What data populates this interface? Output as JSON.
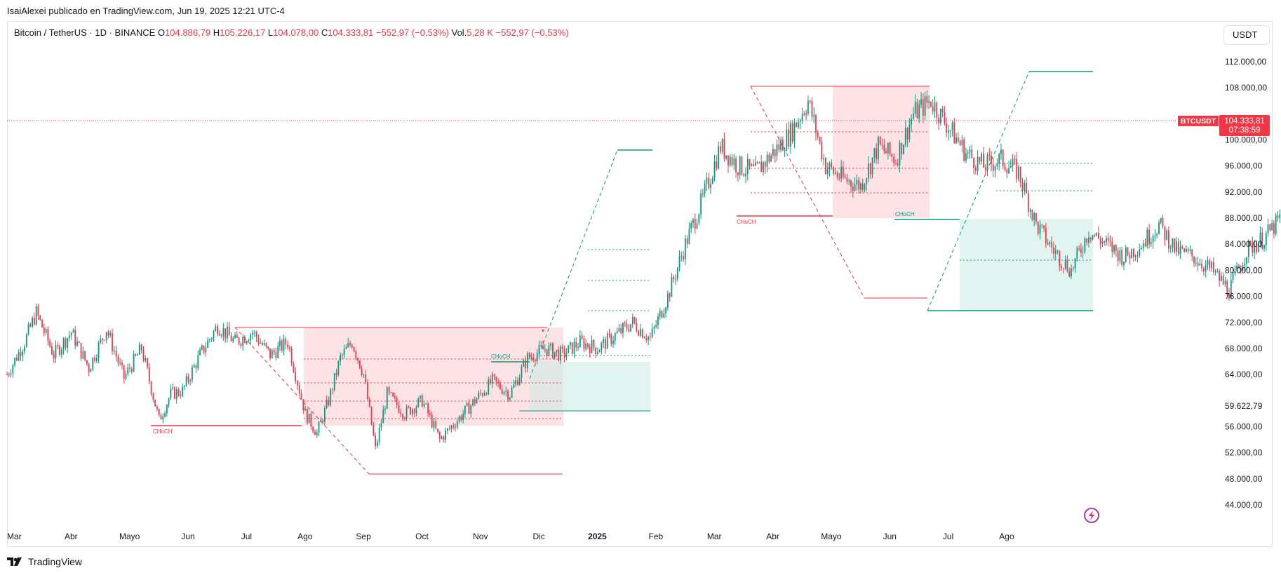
{
  "header": {
    "text": "IsaiAlexei publicado en TradingView.com, Jun 19, 2025 12:21 UTC-4"
  },
  "legend": {
    "symbol": "Bitcoin / TetherUS · 1D · BINANCE",
    "o_label": "O",
    "o_value": "104.886,79",
    "h_label": "H",
    "h_value": "105.226,17",
    "l_label": "L",
    "l_value": "104.078,00",
    "c_label": "C",
    "c_value": "104.333,81",
    "change": "−552,97 (−0,53%)",
    "vol_label": "Vol.",
    "vol_value": "5,28 K",
    "vol_change": "−552,97 (−0,53%)"
  },
  "currency_button": "USDT",
  "price_badge": {
    "symbol": "BTCUSDT",
    "price": "104.333,81",
    "countdown": "07:38:59"
  },
  "extra_price_label": "59.622,79",
  "footer": {
    "brand": "TradingView"
  },
  "colors": {
    "up": "#089981",
    "down": "#f23645",
    "grid_red_zone": "#fde3e5",
    "grid_green_zone": "#e1f4ef",
    "grey_zone": "#e6e6e6"
  },
  "icons": {
    "brand_logo": "tradingview-logo-icon",
    "flash": "lightning-icon"
  },
  "chart_data": {
    "type": "candlestick",
    "x_tick_labels": [
      "Mar",
      "Abr",
      "Mayo",
      "Jun",
      "Jul",
      "Ago",
      "Sep",
      "Oct",
      "Nov",
      "Dic",
      "2025",
      "Feb",
      "Mar",
      "Abr",
      "Mayo",
      "Jun",
      "Jul",
      "Ago"
    ],
    "y_tick_labels": [
      "112.000,00",
      "108.000,00",
      "100.000,00",
      "96.000,00",
      "92.000,00",
      "88.000,00",
      "84.000,00",
      "80.000,00",
      "76.000,00",
      "72.000,00",
      "68.000,00",
      "64.000,00",
      "56.000,00",
      "52.000,00",
      "48.000,00",
      "44.000,00"
    ],
    "y_tick_values": [
      112000,
      108000,
      100000,
      96000,
      92000,
      88000,
      84000,
      80000,
      76000,
      72000,
      68000,
      64000,
      56000,
      52000,
      48000,
      44000
    ],
    "ylim": [
      41000,
      117000
    ],
    "choch_labels": [
      "CHoCH",
      "CHoCH",
      "CHoCH",
      "CHoCH"
    ],
    "current_price": 104333.81,
    "price_path": [
      [
        2.0,
        64000
      ],
      [
        2.3,
        69000
      ],
      [
        2.5,
        73500
      ],
      [
        2.8,
        67000
      ],
      [
        3.1,
        70500
      ],
      [
        3.4,
        65000
      ],
      [
        3.7,
        71000
      ],
      [
        4.0,
        63500
      ],
      [
        4.3,
        68000
      ],
      [
        4.6,
        57000
      ],
      [
        4.8,
        61000
      ],
      [
        5.0,
        61500
      ],
      [
        5.3,
        67000
      ],
      [
        5.6,
        71500
      ],
      [
        5.9,
        69000
      ],
      [
        6.2,
        70500
      ],
      [
        6.5,
        67000
      ],
      [
        6.8,
        69000
      ],
      [
        7.1,
        58000
      ],
      [
        7.3,
        55000
      ],
      [
        7.5,
        60000
      ],
      [
        7.7,
        66500
      ],
      [
        7.9,
        69000
      ],
      [
        8.1,
        64000
      ],
      [
        8.3,
        52500
      ],
      [
        8.5,
        61000
      ],
      [
        8.8,
        58000
      ],
      [
        9.1,
        60000
      ],
      [
        9.4,
        54000
      ],
      [
        9.7,
        57000
      ],
      [
        10.0,
        60000
      ],
      [
        10.3,
        63000
      ],
      [
        10.6,
        61000
      ],
      [
        10.9,
        66500
      ],
      [
        11.2,
        68000
      ],
      [
        11.5,
        67000
      ],
      [
        11.8,
        69000
      ],
      [
        12.1,
        68000
      ],
      [
        12.4,
        70000
      ],
      [
        12.7,
        72000
      ],
      [
        13.0,
        69500
      ],
      [
        13.3,
        76000
      ],
      [
        13.6,
        84000
      ],
      [
        13.9,
        91000
      ],
      [
        14.2,
        99000
      ],
      [
        14.5,
        96000
      ],
      [
        14.8,
        95000
      ],
      [
        15.1,
        98000
      ],
      [
        15.4,
        101000
      ],
      [
        15.7,
        106000
      ],
      [
        16.0,
        96000
      ],
      [
        16.3,
        94000
      ],
      [
        16.6,
        93000
      ],
      [
        16.9,
        99000
      ],
      [
        17.2,
        97000
      ],
      [
        17.5,
        104000
      ],
      [
        17.8,
        106000
      ],
      [
        18.1,
        102000
      ],
      [
        18.4,
        98000
      ],
      [
        18.7,
        96000
      ],
      [
        19.0,
        97000
      ],
      [
        19.3,
        95000
      ],
      [
        19.6,
        87000
      ],
      [
        19.9,
        83000
      ],
      [
        20.2,
        80000
      ],
      [
        20.5,
        86000
      ],
      [
        20.8,
        84000
      ],
      [
        21.1,
        82000
      ],
      [
        21.4,
        84000
      ],
      [
        21.7,
        87000
      ],
      [
        22.0,
        83000
      ],
      [
        22.3,
        82000
      ],
      [
        22.6,
        80000
      ],
      [
        22.9,
        77000
      ],
      [
        23.2,
        83000
      ],
      [
        23.5,
        85000
      ],
      [
        23.8,
        88000
      ],
      [
        24.1,
        93000
      ],
      [
        24.4,
        95000
      ],
      [
        24.7,
        96000
      ],
      [
        25.0,
        97000
      ],
      [
        25.3,
        103000
      ],
      [
        25.6,
        103000
      ],
      [
        25.9,
        104000
      ],
      [
        26.2,
        109000
      ],
      [
        26.5,
        111500
      ],
      [
        26.8,
        107000
      ],
      [
        27.1,
        105000
      ],
      [
        27.4,
        105000
      ],
      [
        27.7,
        101000
      ],
      [
        28.0,
        105000
      ],
      [
        28.3,
        109000
      ],
      [
        28.6,
        106000
      ],
      [
        28.9,
        105000
      ],
      [
        29.2,
        104333.81
      ]
    ]
  }
}
